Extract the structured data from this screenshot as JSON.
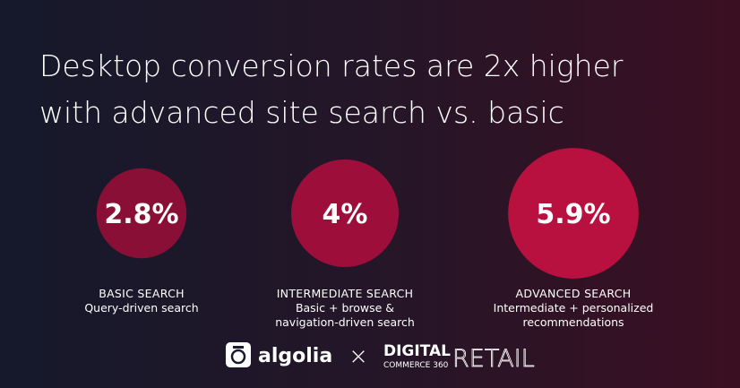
{
  "chart_data": {
    "type": "bubble",
    "title": "Desktop conversion rates are 2x higher with advanced site search vs. basic",
    "categories": [
      "BASIC SEARCH",
      "INTERMEDIATE SEARCH",
      "ADVANCED SEARCH"
    ],
    "descriptions": [
      [
        "Query-driven search"
      ],
      [
        "Basic + browse &",
        "navigation-driven search"
      ],
      [
        "Intermediate + personalized",
        "recommendations"
      ]
    ],
    "values": [
      2.8,
      4,
      5.9
    ],
    "value_labels": [
      "2.8%",
      "4%",
      "5.9%"
    ],
    "colors": [
      "#8a0f36",
      "#9d0f3a",
      "#b8103f"
    ]
  },
  "footer": {
    "brand": "algolia",
    "separator": "×",
    "partner_main": "DIGITAL",
    "partner_sub": "COMMERCE 360",
    "partner_tail": "RETAIL"
  }
}
